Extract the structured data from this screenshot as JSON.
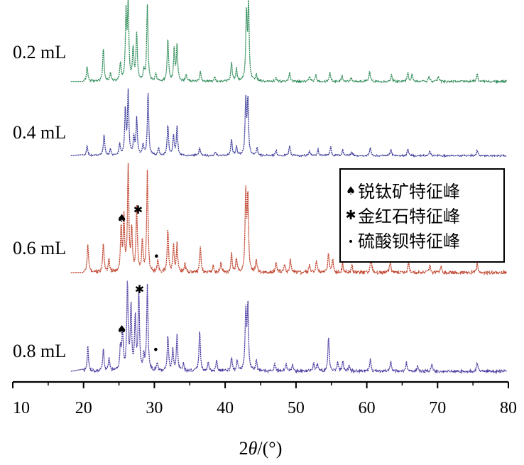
{
  "chart_data": {
    "type": "line",
    "xlabel_prefix": "2",
    "xlabel_symbol": "θ",
    "xlabel_suffix": "/(°)",
    "xlim": [
      10,
      80
    ],
    "xticks": [
      10,
      20,
      30,
      40,
      50,
      60,
      70,
      80
    ],
    "grid": false,
    "legend_position": "right",
    "legend": [
      {
        "symbol": "♠",
        "label": "锐钛矿特征峰"
      },
      {
        "symbol": "✱",
        "label": "金红石特征峰"
      },
      {
        "symbol": "•",
        "label": "硫酸钡特征峰"
      }
    ],
    "series": [
      {
        "name": "0.2 mL",
        "color": "#2e8b57",
        "baseline": 0.03,
        "noise": 0.012,
        "peaks": [
          [
            20.5,
            0.2
          ],
          [
            22.8,
            0.44
          ],
          [
            23.8,
            0.1
          ],
          [
            25.2,
            0.24
          ],
          [
            26.0,
            0.86
          ],
          [
            26.3,
            1.0
          ],
          [
            27.0,
            0.43
          ],
          [
            27.5,
            0.62
          ],
          [
            28.5,
            0.13
          ],
          [
            29.0,
            1.0
          ],
          [
            30.2,
            0.1
          ],
          [
            31.9,
            0.56
          ],
          [
            32.8,
            0.42
          ],
          [
            33.2,
            0.46
          ],
          [
            34.5,
            0.08
          ],
          [
            36.5,
            0.13
          ],
          [
            38.5,
            0.06
          ],
          [
            40.9,
            0.26
          ],
          [
            41.6,
            0.16
          ],
          [
            43.0,
            0.88
          ],
          [
            43.3,
            0.98
          ],
          [
            44.4,
            0.08
          ],
          [
            47.2,
            0.06
          ],
          [
            49.1,
            0.12
          ],
          [
            51.9,
            0.06
          ],
          [
            52.8,
            0.09
          ],
          [
            54.8,
            0.12
          ],
          [
            56.5,
            0.08
          ],
          [
            57.8,
            0.06
          ],
          [
            60.4,
            0.13
          ],
          [
            63.5,
            0.09
          ],
          [
            65.8,
            0.12
          ],
          [
            66.4,
            0.09
          ],
          [
            68.8,
            0.07
          ],
          [
            70.1,
            0.06
          ],
          [
            75.6,
            0.1
          ]
        ],
        "markers": []
      },
      {
        "name": "0.4 mL",
        "color": "#3b3a99",
        "baseline": 0.03,
        "noise": 0.012,
        "peaks": [
          [
            20.5,
            0.15
          ],
          [
            22.9,
            0.33
          ],
          [
            23.8,
            0.1
          ],
          [
            25.1,
            0.18
          ],
          [
            25.9,
            0.72
          ],
          [
            26.3,
            0.98
          ],
          [
            27.1,
            0.28
          ],
          [
            27.5,
            0.58
          ],
          [
            28.4,
            0.16
          ],
          [
            29.1,
            1.0
          ],
          [
            30.6,
            0.12
          ],
          [
            31.9,
            0.48
          ],
          [
            32.7,
            0.32
          ],
          [
            33.2,
            0.44
          ],
          [
            36.4,
            0.12
          ],
          [
            38.6,
            0.06
          ],
          [
            40.9,
            0.26
          ],
          [
            41.6,
            0.14
          ],
          [
            42.9,
            0.85
          ],
          [
            43.2,
            0.86
          ],
          [
            44.5,
            0.12
          ],
          [
            47.2,
            0.09
          ],
          [
            49.1,
            0.16
          ],
          [
            51.9,
            0.08
          ],
          [
            53.1,
            0.1
          ],
          [
            54.9,
            0.14
          ],
          [
            56.6,
            0.09
          ],
          [
            57.9,
            0.06
          ],
          [
            60.5,
            0.13
          ],
          [
            63.4,
            0.1
          ],
          [
            65.8,
            0.11
          ],
          [
            68.9,
            0.07
          ],
          [
            75.6,
            0.09
          ]
        ],
        "markers": []
      },
      {
        "name": "0.6 mL",
        "color": "#c0442e",
        "baseline": 0.04,
        "noise": 0.015,
        "peaks": [
          [
            20.6,
            0.28
          ],
          [
            22.8,
            0.28
          ],
          [
            23.6,
            0.12
          ],
          [
            25.3,
            0.43
          ],
          [
            25.7,
            0.52
          ],
          [
            26.3,
            1.0
          ],
          [
            26.8,
            0.4
          ],
          [
            27.5,
            0.6
          ],
          [
            28.3,
            0.3
          ],
          [
            29.0,
            0.95
          ],
          [
            30.5,
            0.12
          ],
          [
            31.9,
            0.4
          ],
          [
            32.7,
            0.26
          ],
          [
            33.2,
            0.28
          ],
          [
            34.3,
            0.08
          ],
          [
            36.5,
            0.26
          ],
          [
            38.3,
            0.08
          ],
          [
            39.4,
            0.09
          ],
          [
            40.9,
            0.18
          ],
          [
            41.6,
            0.14
          ],
          [
            42.9,
            0.74
          ],
          [
            43.2,
            0.72
          ],
          [
            44.4,
            0.12
          ],
          [
            47.2,
            0.1
          ],
          [
            48.4,
            0.08
          ],
          [
            49.2,
            0.13
          ],
          [
            51.9,
            0.08
          ],
          [
            52.9,
            0.12
          ],
          [
            54.6,
            0.18
          ],
          [
            55.2,
            0.13
          ],
          [
            56.6,
            0.09
          ],
          [
            57.9,
            0.07
          ],
          [
            60.6,
            0.15
          ],
          [
            63.3,
            0.1
          ],
          [
            65.9,
            0.1
          ],
          [
            68.9,
            0.07
          ],
          [
            70.5,
            0.06
          ],
          [
            75.6,
            0.09
          ]
        ],
        "markers": [
          {
            "x": 25.4,
            "y": 0.52,
            "symbol": "♠"
          },
          {
            "x": 27.7,
            "y": 0.6,
            "symbol": "✱"
          },
          {
            "x": 30.3,
            "y": 0.16,
            "symbol": "•"
          }
        ]
      },
      {
        "name": "0.8 mL",
        "color": "#4b3ba0",
        "baseline": 0.04,
        "noise": 0.015,
        "peaks": [
          [
            20.6,
            0.28
          ],
          [
            22.8,
            0.25
          ],
          [
            23.6,
            0.14
          ],
          [
            25.2,
            0.26
          ],
          [
            25.5,
            0.45
          ],
          [
            26.2,
            0.98
          ],
          [
            26.7,
            0.72
          ],
          [
            27.3,
            0.6
          ],
          [
            27.8,
            0.88
          ],
          [
            28.5,
            0.16
          ],
          [
            29.0,
            0.95
          ],
          [
            30.4,
            0.1
          ],
          [
            31.9,
            0.39
          ],
          [
            32.6,
            0.24
          ],
          [
            33.2,
            0.4
          ],
          [
            34.1,
            0.08
          ],
          [
            36.4,
            0.46
          ],
          [
            37.6,
            0.09
          ],
          [
            38.8,
            0.12
          ],
          [
            40.9,
            0.16
          ],
          [
            41.7,
            0.12
          ],
          [
            42.9,
            0.66
          ],
          [
            43.2,
            0.75
          ],
          [
            44.4,
            0.12
          ],
          [
            47.0,
            0.1
          ],
          [
            48.6,
            0.08
          ],
          [
            49.5,
            0.08
          ],
          [
            52.5,
            0.1
          ],
          [
            53.0,
            0.08
          ],
          [
            54.6,
            0.4
          ],
          [
            55.9,
            0.1
          ],
          [
            56.6,
            0.12
          ],
          [
            57.5,
            0.07
          ],
          [
            60.5,
            0.13
          ],
          [
            63.4,
            0.11
          ],
          [
            65.6,
            0.1
          ],
          [
            67.2,
            0.06
          ],
          [
            69.2,
            0.09
          ],
          [
            75.6,
            0.09
          ]
        ],
        "markers": [
          {
            "x": 25.4,
            "y": 0.47,
            "symbol": "♠"
          },
          {
            "x": 27.9,
            "y": 0.92,
            "symbol": "✱"
          },
          {
            "x": 30.2,
            "y": 0.24,
            "symbol": "•"
          }
        ]
      }
    ]
  }
}
